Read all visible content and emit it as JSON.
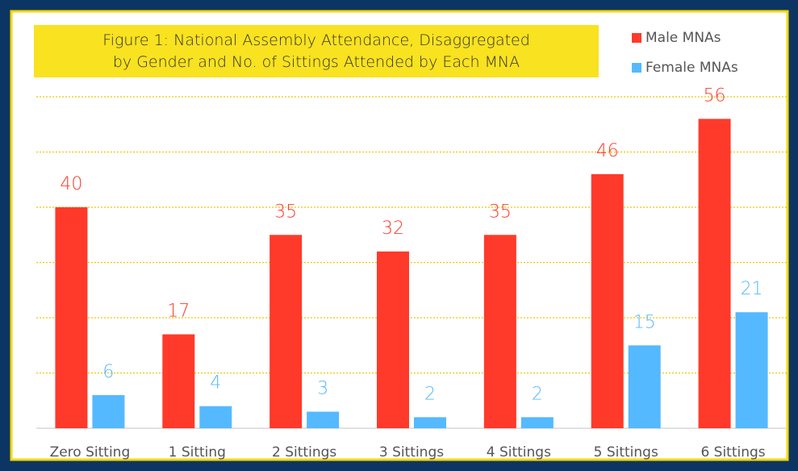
{
  "chart_data": {
    "type": "bar",
    "title": "Figure 1: National Assembly Attendance, Disaggregated by Gender and No. of Sittings Attended by Each MNA",
    "categories": [
      "Zero Sitting",
      "1 Sitting",
      "2 Sittings",
      "3 Sittings",
      "4 Sittings",
      "5 Sittings",
      "6 Sittings"
    ],
    "series": [
      {
        "name": "Male MNAs",
        "color": "#ff3a2a",
        "values": [
          40,
          17,
          35,
          32,
          35,
          46,
          56
        ]
      },
      {
        "name": "Female MNAs",
        "color": "#55b9ff",
        "values": [
          6,
          4,
          3,
          2,
          2,
          15,
          21
        ]
      }
    ],
    "ylim": [
      0,
      60
    ],
    "yticks": [
      0,
      10,
      20,
      30,
      40,
      50,
      60
    ],
    "grid": true,
    "legend": "top-right"
  }
}
